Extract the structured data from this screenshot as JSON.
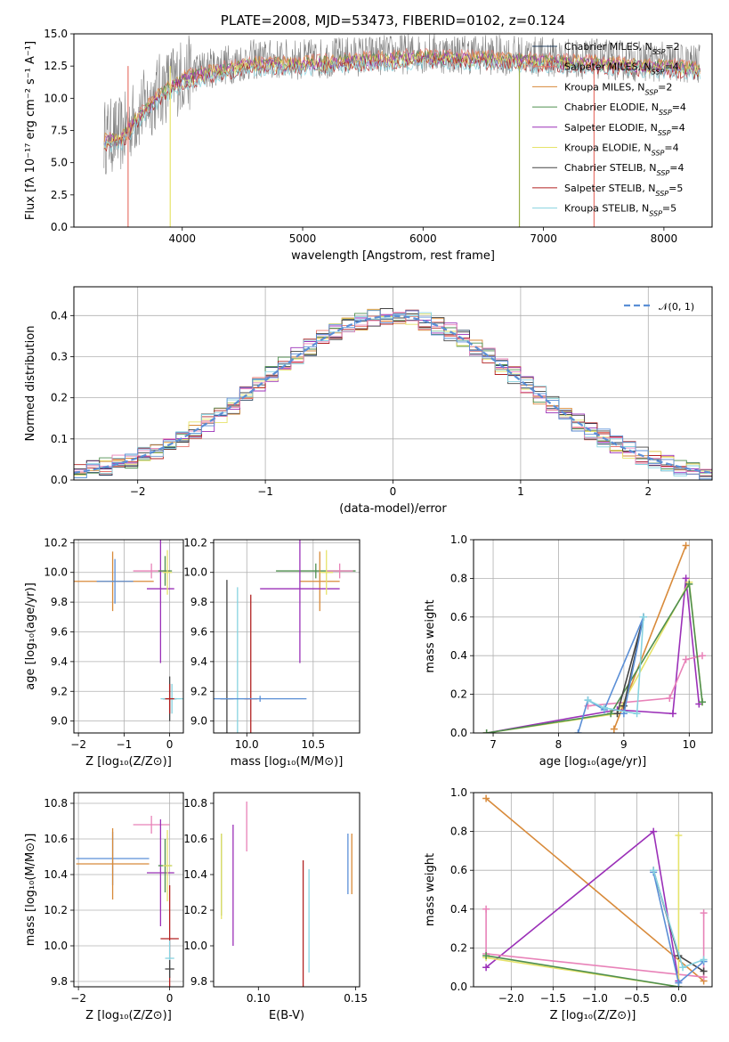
{
  "chart_data": [
    {
      "type": "line",
      "title": "PLATE=2008, MJD=53473, FIBERID=0102, z=0.124",
      "xlabel": "wavelength [Angstrom, rest frame]",
      "ylabel": "Flux [fλ 10⁻¹⁷ erg cm⁻² s⁻¹ A⁻¹]",
      "xlim": [
        3100,
        8400
      ],
      "ylim": [
        0,
        15
      ],
      "xticks": [
        "4000",
        "5000",
        "6000",
        "7000",
        "8000"
      ],
      "yticks": [
        "0.0",
        "2.5",
        "5.0",
        "7.5",
        "10.0",
        "12.5",
        "15.0"
      ],
      "legend_position": "upper-right",
      "legend": [
        {
          "label": "Chabrier MILES, N",
          "sub": "SSP",
          "suffix": "=2",
          "color": "#1f3b5a"
        },
        {
          "label": "Salpeter MILES, N",
          "sub": "SSP",
          "suffix": "=4",
          "color": "#e8766d"
        },
        {
          "label": "Kroupa MILES, N",
          "sub": "SSP",
          "suffix": "=2",
          "color": "#d88a3a"
        },
        {
          "label": "Chabrier ELODIE, N",
          "sub": "SSP",
          "suffix": "=4",
          "color": "#4f8f4f"
        },
        {
          "label": "Salpeter ELODIE, N",
          "sub": "SSP",
          "suffix": "=4",
          "color": "#9b30b8"
        },
        {
          "label": "Kroupa ELODIE, N",
          "sub": "SSP",
          "suffix": "=4",
          "color": "#e6e36a"
        },
        {
          "label": "Chabrier STELIB, N",
          "sub": "SSP",
          "suffix": "=4",
          "color": "#444444"
        },
        {
          "label": "Salpeter STELIB, N",
          "sub": "SSP",
          "suffix": "=5",
          "color": "#b22222"
        },
        {
          "label": "Kroupa STELIB, N",
          "sub": "SSP",
          "suffix": "=5",
          "color": "#87d3e0"
        }
      ],
      "spectrum_envelope": {
        "x": [
          3350,
          3500,
          3600,
          3800,
          4000,
          4300,
          4600,
          5000,
          5500,
          6000,
          6500,
          7000,
          7500,
          8000,
          8300
        ],
        "y": [
          7.0,
          7.2,
          8.5,
          10.5,
          11.8,
          12.5,
          13.0,
          13.0,
          13.3,
          13.5,
          13.4,
          13.2,
          13.0,
          12.8,
          12.6
        ]
      }
    },
    {
      "type": "line",
      "xlabel": "(data-model)/error",
      "ylabel": "Normed distribution",
      "xlim": [
        -2.5,
        2.5
      ],
      "ylim": [
        0,
        0.47
      ],
      "xticks": [
        "−2",
        "−1",
        "0",
        "1",
        "2"
      ],
      "yticks": [
        "0.0",
        "0.1",
        "0.2",
        "0.3",
        "0.4"
      ],
      "grid": true,
      "legend_position": "upper-right",
      "legend": [
        {
          "label": "𝒩(0, 1)",
          "color": "#5b8fd6",
          "style": "dashed"
        }
      ],
      "reference_curve": "standard normal pdf"
    },
    {
      "type": "scatter",
      "xlabel": "Z [log₁₀(Z/Z⊙)]",
      "ylabel": "age  [log₁₀(age/yr)]",
      "xlim": [
        -2.1,
        0.3
      ],
      "ylim": [
        8.92,
        10.22
      ],
      "xticks": [
        "−2",
        "−1",
        "0"
      ],
      "yticks": [
        "9.0",
        "9.2",
        "9.4",
        "9.6",
        "9.8",
        "10.0",
        "10.2"
      ],
      "grid": true,
      "points": [
        {
          "x": -1.25,
          "y": 9.94,
          "xerr": 0.9,
          "yerr": 0.2,
          "color": "#d88a3a"
        },
        {
          "x": -1.2,
          "y": 9.94,
          "xerr": 0.4,
          "yerr": 0.15,
          "color": "#5b8fd6"
        },
        {
          "x": -0.4,
          "y": 10.01,
          "xerr": 0.4,
          "yerr": 0.05,
          "color": "#e882b8"
        },
        {
          "x": -0.2,
          "y": 9.89,
          "xerr": 0.3,
          "yerr": 0.5,
          "color": "#9b30b8"
        },
        {
          "x": -0.1,
          "y": 10.01,
          "xerr": 0.15,
          "yerr": 0.1,
          "color": "#4f8f4f"
        },
        {
          "x": -0.05,
          "y": 10.0,
          "xerr": 0.1,
          "yerr": 0.15,
          "color": "#e6e36a"
        },
        {
          "x": 0.0,
          "y": 9.15,
          "xerr": 0.15,
          "yerr": 0.15,
          "color": "#444444"
        },
        {
          "x": 0.05,
          "y": 9.15,
          "xerr": 0.25,
          "yerr": 0.1,
          "color": "#87d3e0"
        },
        {
          "x": 0.0,
          "y": 9.15,
          "xerr": 0.1,
          "yerr": 0.1,
          "color": "#b22222"
        }
      ]
    },
    {
      "type": "scatter",
      "xlabel": "mass [log₁₀(M/M⊙)]",
      "ylabel": "",
      "xlim": [
        9.75,
        10.85
      ],
      "ylim": [
        8.92,
        10.22
      ],
      "xticks": [
        "10.0",
        "10.5"
      ],
      "yticks": [
        "9.0",
        "9.2",
        "9.4",
        "9.6",
        "9.8",
        "10.0",
        "10.2"
      ],
      "grid": true,
      "points": [
        {
          "x": 10.52,
          "y": 10.01,
          "xerr": 0.3,
          "yerr": 0.05,
          "color": "#4f8f4f"
        },
        {
          "x": 10.55,
          "y": 9.94,
          "xerr": 0.15,
          "yerr": 0.2,
          "color": "#d88a3a"
        },
        {
          "x": 10.7,
          "y": 10.01,
          "xerr": 0.1,
          "yerr": 0.05,
          "color": "#e882b8"
        },
        {
          "x": 10.4,
          "y": 9.89,
          "xerr": 0.3,
          "yerr": 0.5,
          "color": "#9b30b8"
        },
        {
          "x": 10.6,
          "y": 10.0,
          "xerr": 0.05,
          "yerr": 0.15,
          "color": "#e6e36a"
        },
        {
          "x": 9.85,
          "y": 9.15,
          "xerr": 0.05,
          "yerr": 0.8,
          "color": "#444444"
        },
        {
          "x": 9.93,
          "y": 9.15,
          "xerr": 0.05,
          "yerr": 0.75,
          "color": "#87d3e0"
        },
        {
          "x": 10.03,
          "y": 9.15,
          "xerr": 0.05,
          "yerr": 0.7,
          "color": "#b22222"
        },
        {
          "x": 10.1,
          "y": 9.15,
          "xerr": 0.35,
          "yerr": 0.02,
          "color": "#5b8fd6"
        }
      ]
    },
    {
      "type": "line",
      "xlabel": "age  [log₁₀(age/yr)]",
      "ylabel": "mass weight",
      "xlim": [
        6.7,
        10.35
      ],
      "ylim": [
        0,
        1
      ],
      "xticks": [
        "7",
        "8",
        "9",
        "10"
      ],
      "yticks": [
        "0.0",
        "0.2",
        "0.4",
        "0.6",
        "0.8",
        "1.0"
      ],
      "grid": true,
      "series": [
        {
          "color": "#d88a3a",
          "x": [
            8.85,
            9.95
          ],
          "y": [
            0.02,
            0.97
          ]
        },
        {
          "color": "#9b30b8",
          "x": [
            6.9,
            8.9,
            9.75,
            9.95,
            10.15
          ],
          "y": [
            0.0,
            0.12,
            0.1,
            0.8,
            0.15
          ]
        },
        {
          "color": "#e882b8",
          "x": [
            8.45,
            9.7,
            9.95,
            10.2
          ],
          "y": [
            0.14,
            0.18,
            0.38,
            0.4
          ]
        },
        {
          "color": "#e6e36a",
          "x": [
            6.9,
            8.9,
            10.0,
            10.2
          ],
          "y": [
            0.0,
            0.1,
            0.78,
            0.16
          ]
        },
        {
          "color": "#4f8f4f",
          "x": [
            6.9,
            8.8,
            10.0,
            10.2
          ],
          "y": [
            0.0,
            0.1,
            0.77,
            0.16
          ]
        },
        {
          "color": "#444444",
          "x": [
            8.9,
            9.3,
            9.0
          ],
          "y": [
            0.1,
            0.6,
            0.14
          ]
        },
        {
          "color": "#5b8fd6",
          "x": [
            8.3,
            8.45,
            8.7,
            9.3,
            9.0
          ],
          "y": [
            0.0,
            0.17,
            0.12,
            0.6,
            0.1
          ]
        },
        {
          "color": "#87d3e0",
          "x": [
            8.45,
            8.7,
            9.2,
            9.3
          ],
          "y": [
            0.17,
            0.13,
            0.1,
            0.6
          ]
        }
      ]
    },
    {
      "type": "scatter",
      "xlabel": "Z [log₁₀(Z/Z⊙)]",
      "ylabel": "mass [log₁₀(M/M⊙)]",
      "xlim": [
        -2.1,
        0.3
      ],
      "ylim": [
        9.77,
        10.86
      ],
      "xticks": [
        "−2",
        "0"
      ],
      "yticks": [
        "9.8",
        "10.0",
        "10.2",
        "10.4",
        "10.6",
        "10.8"
      ],
      "grid": true,
      "points": [
        {
          "x": -1.25,
          "y": 10.49,
          "xerr": 0.8,
          "yerr": 0.15,
          "color": "#5b8fd6"
        },
        {
          "x": -1.25,
          "y": 10.46,
          "xerr": 0.8,
          "yerr": 0.2,
          "color": "#d88a3a"
        },
        {
          "x": -0.4,
          "y": 10.68,
          "xerr": 0.4,
          "yerr": 0.05,
          "color": "#e882b8"
        },
        {
          "x": -0.2,
          "y": 10.41,
          "xerr": 0.3,
          "yerr": 0.3,
          "color": "#9b30b8"
        },
        {
          "x": -0.1,
          "y": 10.45,
          "xerr": 0.15,
          "yerr": 0.15,
          "color": "#4f8f4f"
        },
        {
          "x": -0.05,
          "y": 10.45,
          "xerr": 0.1,
          "yerr": 0.2,
          "color": "#e6e36a"
        },
        {
          "x": 0.0,
          "y": 10.04,
          "xerr": 0.2,
          "yerr": 0.3,
          "color": "#b22222"
        },
        {
          "x": 0.0,
          "y": 9.93,
          "xerr": 0.1,
          "yerr": 0.1,
          "color": "#87d3e0"
        },
        {
          "x": 0.0,
          "y": 9.87,
          "xerr": 0.1,
          "yerr": 0.05,
          "color": "#444444"
        }
      ]
    },
    {
      "type": "scatter",
      "xlabel": "E(B-V)",
      "ylabel": "",
      "xlim": [
        0.077,
        0.152
      ],
      "ylim": [
        9.77,
        10.86
      ],
      "xticks": [
        "0.10",
        "0.15"
      ],
      "yticks": [
        "9.8",
        "10.0",
        "10.2",
        "10.4",
        "10.6",
        "10.8"
      ],
      "grid": false,
      "points": [
        {
          "x": 0.081,
          "y": 10.4,
          "xerr": 0,
          "yerr": 0.23,
          "color": "#4f8f4f"
        },
        {
          "x": 0.081,
          "y": 10.39,
          "xerr": 0,
          "yerr": 0.24,
          "color": "#e6e36a"
        },
        {
          "x": 0.087,
          "y": 10.34,
          "xerr": 0,
          "yerr": 0.34,
          "color": "#9b30b8"
        },
        {
          "x": 0.094,
          "y": 10.67,
          "xerr": 0,
          "yerr": 0.14,
          "color": "#e882b8"
        },
        {
          "x": 0.123,
          "y": 10.07,
          "xerr": 0,
          "yerr": 0.41,
          "color": "#b22222"
        },
        {
          "x": 0.126,
          "y": 10.14,
          "xerr": 0,
          "yerr": 0.29,
          "color": "#87d3e0"
        },
        {
          "x": 0.146,
          "y": 10.46,
          "xerr": 0,
          "yerr": 0.17,
          "color": "#5b8fd6"
        },
        {
          "x": 0.148,
          "y": 10.46,
          "xerr": 0,
          "yerr": 0.17,
          "color": "#d88a3a"
        }
      ]
    },
    {
      "type": "line",
      "xlabel": "Z [log₁₀(Z/Z⊙)]",
      "ylabel": "mass weight",
      "xlim": [
        -2.45,
        0.4
      ],
      "ylim": [
        0,
        1
      ],
      "xticks": [
        "−2.0",
        "−1.5",
        "−1.0",
        "−0.5",
        "0.0"
      ],
      "yticks": [
        "0.0",
        "0.2",
        "0.4",
        "0.6",
        "0.8",
        "1.0"
      ],
      "grid": true,
      "series": [
        {
          "color": "#d88a3a",
          "x": [
            -2.3,
            0.3
          ],
          "y": [
            0.97,
            0.03
          ]
        },
        {
          "color": "#9b30b8",
          "x": [
            -2.3,
            -0.3,
            0.0
          ],
          "y": [
            0.1,
            0.8,
            0.03
          ]
        },
        {
          "color": "#e882b8",
          "x": [
            -2.3,
            -2.3,
            0.3,
            0.3
          ],
          "y": [
            0.4,
            0.17,
            0.05,
            0.38
          ]
        },
        {
          "color": "#e6e36a",
          "x": [
            -2.3,
            0.0,
            0.0
          ],
          "y": [
            0.15,
            0.0,
            0.78
          ]
        },
        {
          "color": "#4f8f4f",
          "x": [
            -2.3,
            0.0
          ],
          "y": [
            0.16,
            0.0
          ]
        },
        {
          "color": "#444444",
          "x": [
            -0.3,
            0.0,
            0.3
          ],
          "y": [
            0.6,
            0.16,
            0.08
          ]
        },
        {
          "color": "#5b8fd6",
          "x": [
            -0.3,
            0.0,
            0.3
          ],
          "y": [
            0.59,
            0.02,
            0.13
          ]
        },
        {
          "color": "#87d3e0",
          "x": [
            -0.3,
            0.05,
            0.3
          ],
          "y": [
            0.6,
            0.1,
            0.14
          ]
        }
      ]
    }
  ]
}
